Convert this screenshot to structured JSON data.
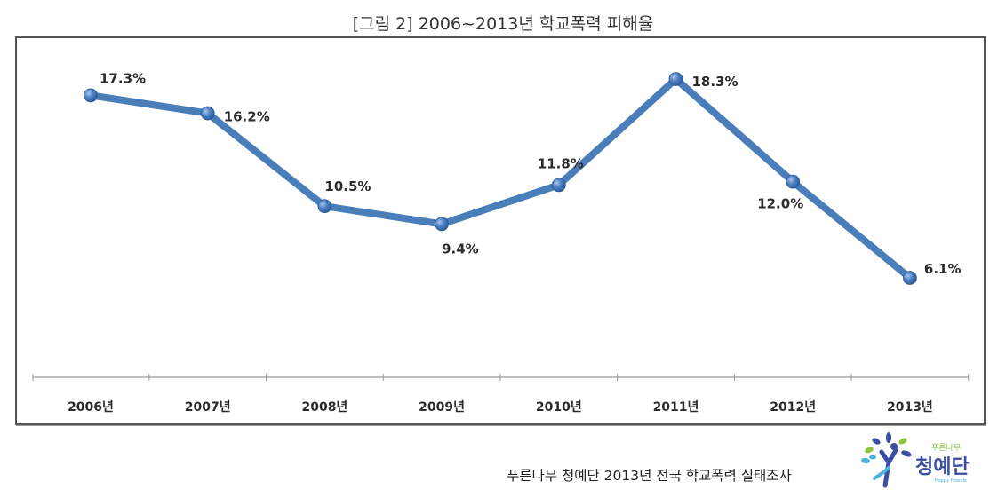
{
  "header": {
    "title": "[그림 2] 2006~2013년 학교폭력 피해율"
  },
  "footer": {
    "source": "푸른나무 청예단 2013년 전국 학교폭력 실태조사",
    "logo": {
      "icon": "tree-people-logo-icon",
      "small_text": "푸른나무",
      "main_text": "청예단",
      "sub_text": "Happy Friends"
    }
  },
  "colors": {
    "line": "#4a7ebb",
    "marker": "#3e6fb0",
    "frame": "#555555",
    "axis": "#999999"
  },
  "chart_data": {
    "type": "line",
    "title": "[그림 2] 2006~2013년 학교폭력 피해율",
    "xlabel": "",
    "ylabel": "",
    "categories": [
      "2006년",
      "2007년",
      "2008년",
      "2009년",
      "2010년",
      "2011년",
      "2012년",
      "2013년"
    ],
    "series": [
      {
        "name": "학교폭력 피해율",
        "values": [
          17.3,
          16.2,
          10.5,
          9.4,
          11.8,
          18.3,
          12.0,
          6.1
        ],
        "labels": [
          "17.3%",
          "16.2%",
          "10.5%",
          "9.4%",
          "11.8%",
          "18.3%",
          "12.0%",
          "6.1%"
        ]
      }
    ],
    "ylim": [
      0,
      20
    ],
    "grid": false,
    "legend": "none",
    "y_axis_visible": false
  }
}
